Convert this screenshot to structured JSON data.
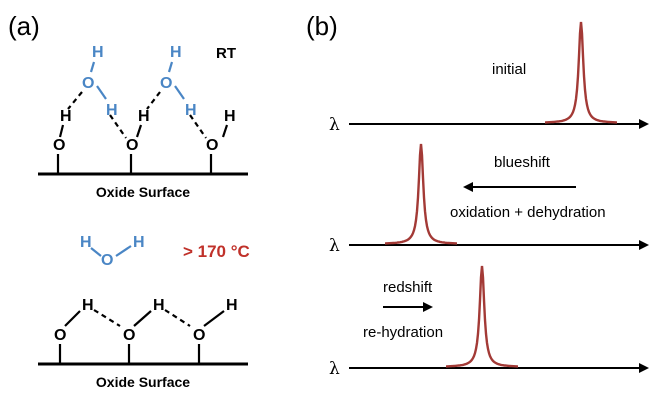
{
  "panel_a": {
    "label": "(a)",
    "condition_top": "RT",
    "condition_bottom": "> 170 °C",
    "surface_label_top": "Oxide Surface",
    "surface_label_bottom": "Oxide Surface",
    "atoms": {
      "hydrogen": "H",
      "oxygen": "O"
    }
  },
  "panel_b": {
    "label": "(b)",
    "axis_symbol": "λ",
    "row1": {
      "label": "initial"
    },
    "row2": {
      "label": "blueshift",
      "sublabel": "oxidation + dehydration"
    },
    "row3": {
      "label": "redshift",
      "sublabel": "re-hydration"
    }
  },
  "colors": {
    "water": "#4a86c5",
    "temperature": "#c0312a",
    "peak": "#a33a36"
  }
}
